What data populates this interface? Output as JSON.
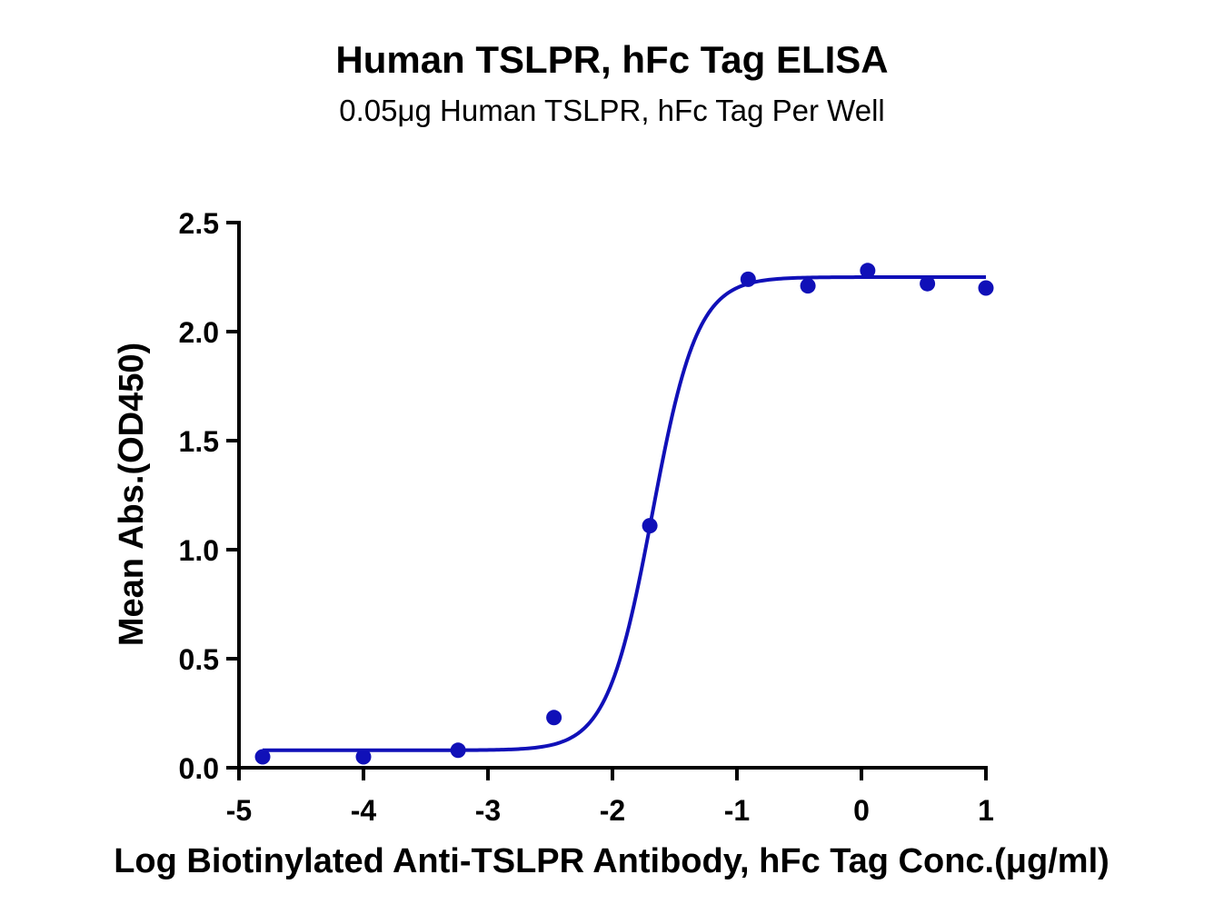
{
  "chart_data": {
    "type": "scatter",
    "title": "Human TSLPR, hFc Tag ELISA",
    "subtitle": "0.05μg Human TSLPR, hFc Tag Per Well",
    "xlabel": "Log Biotinylated Anti-TSLPR Antibody, hFc Tag Conc.(μg/ml)",
    "ylabel": "Mean Abs.(OD450)",
    "xlim": [
      -5,
      1
    ],
    "ylim": [
      0,
      2.5
    ],
    "xticks": [
      "-5",
      "-4",
      "-3",
      "-2",
      "-1",
      "0",
      "1"
    ],
    "yticks": [
      "0.0",
      "0.5",
      "1.0",
      "1.5",
      "2.0",
      "2.5"
    ],
    "grid": false,
    "color": "#1010b8",
    "series": [
      {
        "points": [
          {
            "x": -4.81,
            "y": 0.05
          },
          {
            "x": -4.0,
            "y": 0.05
          },
          {
            "x": -3.24,
            "y": 0.08
          },
          {
            "x": -2.47,
            "y": 0.23
          },
          {
            "x": -1.7,
            "y": 1.11
          },
          {
            "x": -0.91,
            "y": 2.24
          },
          {
            "x": -0.43,
            "y": 2.21
          },
          {
            "x": 0.05,
            "y": 2.28
          },
          {
            "x": 0.53,
            "y": 2.22
          },
          {
            "x": 1.0,
            "y": 2.2
          }
        ],
        "fit": {
          "model": "4PL",
          "bottom": 0.08,
          "top": 2.25,
          "logEC50": -1.68,
          "hill": 2.4
        }
      }
    ]
  }
}
